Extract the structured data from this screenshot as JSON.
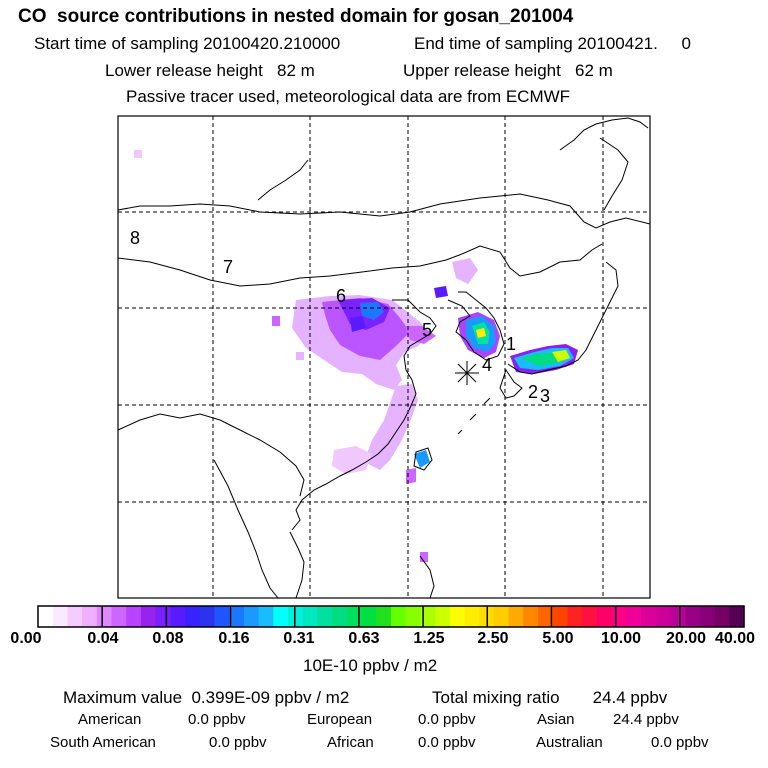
{
  "header": {
    "title": "CO  source contributions in nested domain for gosan_201004",
    "start_time": "Start time of sampling 20100420.210000",
    "end_time": "End time of sampling 20100421.     0",
    "lower_release": "Lower release height   82 m",
    "upper_release": "Upper release height   62 m",
    "tracer_note": "Passive tracer used, meteorological data are from ECMWF"
  },
  "map": {
    "region_labels": [
      "1",
      "2",
      "3",
      "4",
      "5",
      "6",
      "7",
      "8"
    ],
    "colors": {
      "coast": "#000000",
      "grid": "#000000",
      "frame": "#000000"
    }
  },
  "colorbar": {
    "tick_labels": [
      "0.00",
      "0.04",
      "0.08",
      "0.16",
      "0.31",
      "0.63",
      "1.25",
      "2.50",
      "5.00",
      "10.00",
      "20.00",
      "40.00"
    ],
    "unit": "10E-10 ppbv / m2",
    "colors": [
      "#ffffff",
      "#fbe9ff",
      "#f4ccff",
      "#eeb0ff",
      "#dd88ff",
      "#cc66ff",
      "#b844ff",
      "#9922ee",
      "#7a1fff",
      "#5a1aff",
      "#3a22ff",
      "#2a33ee",
      "#1f55ff",
      "#1a77ff",
      "#1a99ff",
      "#1abbff",
      "#00ffff",
      "#00f0dd",
      "#00e8c0",
      "#00e0a0",
      "#00dd80",
      "#00e060",
      "#00e040",
      "#20e020",
      "#66ff00",
      "#88ff00",
      "#aaff00",
      "#ccff00",
      "#ffff00",
      "#ffee00",
      "#ffdd00",
      "#ffcc00",
      "#ffaa00",
      "#ff8800",
      "#ff6600",
      "#ff4400",
      "#ff2222",
      "#ff1040",
      "#ff0066",
      "#ff0088",
      "#ee0099",
      "#dd0099",
      "#cc0099",
      "#bb0099",
      "#990088",
      "#880077",
      "#770066",
      "#550055"
    ]
  },
  "summary": {
    "max_value": "Maximum value  0.399E-09 ppbv / m2",
    "total_mixing": "Total mixing ratio       24.4 ppbv",
    "american_label": "American",
    "american_value": "0.0 ppbv",
    "european_label": "European",
    "european_value": "0.0 ppbv",
    "asian_label": "Asian",
    "asian_value": "24.4 ppbv",
    "south_american_label": "South American",
    "south_american_value": "0.0 ppbv",
    "african_label": "African",
    "african_value": "0.0 ppbv",
    "australian_label": "Australian",
    "australian_value": "0.0 ppbv"
  },
  "chart_data": {
    "type": "heatmap",
    "title": "CO  source contributions in nested domain for gosan_201004",
    "unit": "10E-10 ppbv / m2",
    "color_levels": [
      0.0,
      0.04,
      0.08,
      0.16,
      0.31,
      0.63,
      1.25,
      2.5,
      5.0,
      10.0,
      20.0,
      40.0
    ],
    "max_value": "0.399E-09 ppbv / m2",
    "total_mixing_ratio": "24.4 ppbv"
  }
}
